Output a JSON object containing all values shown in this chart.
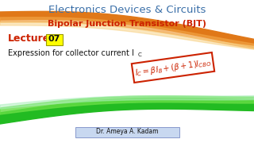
{
  "title": "Electronics Devices & Circuits",
  "subtitle": "Bipolar Junction Transistor (BJT)",
  "lecture_label": "Lecture",
  "lecture_num": "07",
  "expression_text": "Expression for collector current I",
  "formula": "$I_C = \\beta I_B + (\\beta + 1)I_{CBO}$",
  "author": "Dr. Ameya A. Kadam",
  "title_color": "#3a6fa8",
  "subtitle_color": "#cc2200",
  "lecture_color": "#cc2200",
  "lecture_num_color": "#111111",
  "body_text_color": "#111111",
  "formula_color": "#cc2200",
  "author_color": "#111111",
  "bg_color": "#ffffff",
  "wave_orange": "#e07818",
  "wave_orange2": "#f0a040",
  "wave_green": "#22bb22",
  "wave_green2": "#66dd44"
}
